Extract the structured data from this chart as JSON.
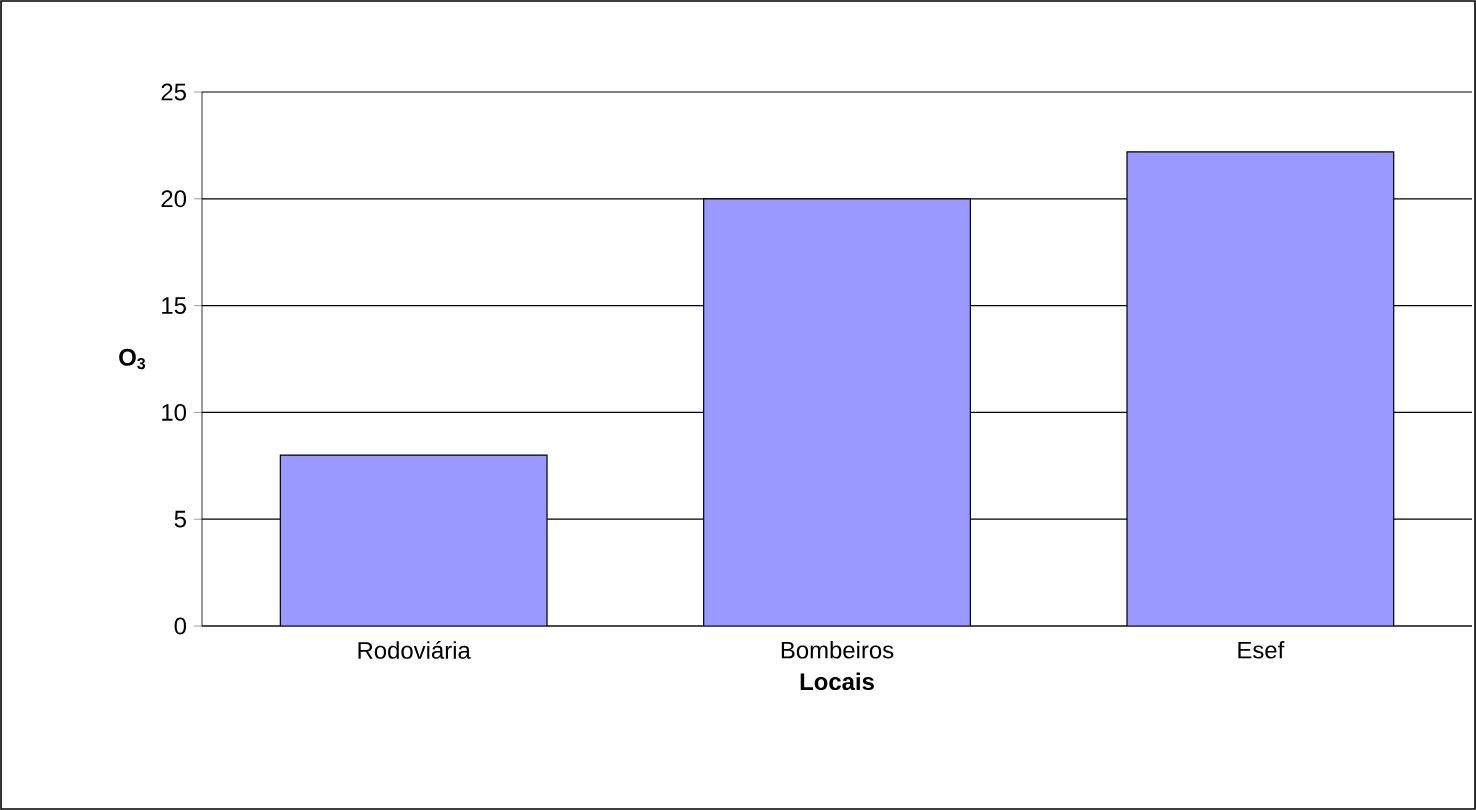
{
  "chart_data": {
    "type": "bar",
    "xlabel": "Locais",
    "ylabel": "O$_{3}$",
    "categories": [
      "Rodoviária",
      "Bombeiros",
      "Esef"
    ],
    "values": [
      8,
      20,
      22.2
    ],
    "color": "#9999ff",
    "ylim": [
      0,
      25
    ],
    "yticks": [
      0,
      5,
      10,
      15,
      20,
      25
    ],
    "grid": "y"
  }
}
